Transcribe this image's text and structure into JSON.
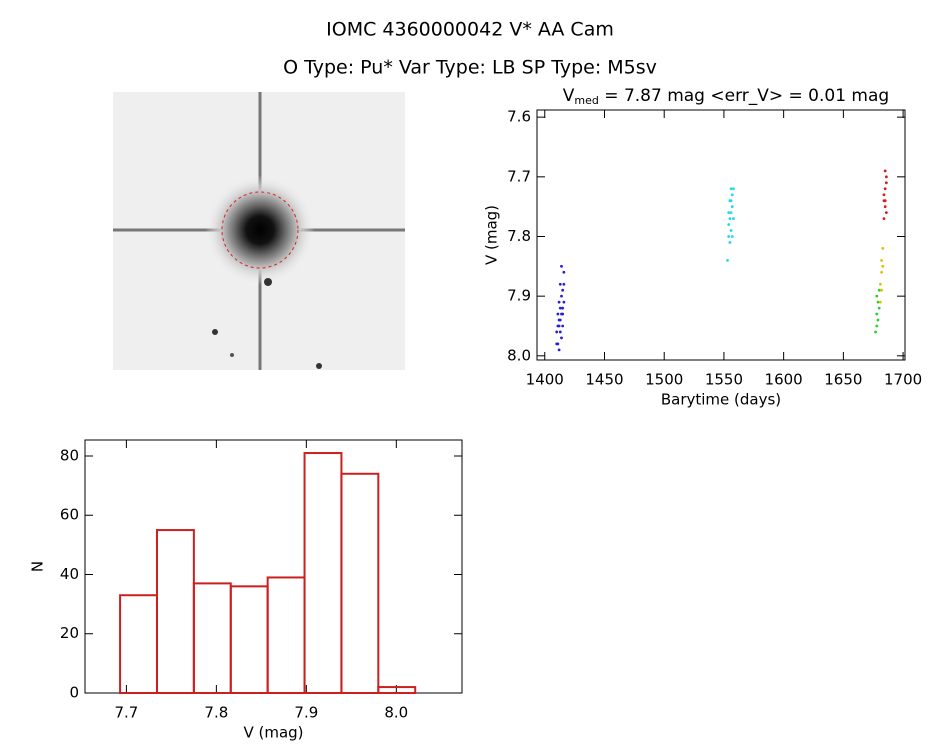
{
  "header": {
    "title": "IOMC 4360000042    V* AA Cam",
    "subtitle": "O Type: Pu*  Var Type: LB  SP Type: M5sv"
  },
  "chart_data": [
    {
      "type": "scatter",
      "title": [
        "V",
        "med",
        " = 7.87 mag <err_V> = 0.01 mag"
      ],
      "x_label": "Barytime (days)",
      "y_label": "V (mag)",
      "xlim": [
        1393.5,
        1701.6
      ],
      "ylim": [
        7.588,
        8.007
      ],
      "y_inverted": true,
      "xticks": [
        1400,
        1450,
        1500,
        1550,
        1600,
        1650,
        1700
      ],
      "yticks": [
        7.6,
        7.7,
        7.8,
        7.9,
        {
          "value": 8.0,
          "label": "8.0"
        }
      ],
      "series": [
        {
          "color": "#2a1fd6",
          "x": [
            1410,
            1411,
            1411,
            1412,
            1412,
            1412,
            1413,
            1413,
            1413,
            1414,
            1414,
            1414,
            1415,
            1415,
            1415,
            1416,
            1416,
            1411,
            1413,
            1414,
            1412,
            1415,
            1410,
            1416
          ],
          "values": [
            7.96,
            7.93,
            7.98,
            7.91,
            7.95,
            7.99,
            7.92,
            7.88,
            7.94,
            7.9,
            7.93,
            7.97,
            7.89,
            7.92,
            7.95,
            7.86,
            7.91,
            7.95,
            7.96,
            7.85,
            7.94,
            7.93,
            7.98,
            7.88
          ]
        },
        {
          "color": "#1fd8f0",
          "x": [
            1553,
            1554,
            1554,
            1555,
            1555,
            1556,
            1556,
            1556,
            1557,
            1557,
            1558,
            1558,
            1555,
            1557,
            1554,
            1556
          ],
          "values": [
            7.84,
            7.78,
            7.8,
            7.74,
            7.77,
            7.72,
            7.76,
            7.79,
            7.73,
            7.75,
            7.72,
            7.77,
            7.81,
            7.8,
            7.76,
            7.74
          ]
        },
        {
          "color": "#2cd12c",
          "x": [
            1677,
            1678,
            1678,
            1679,
            1679,
            1680,
            1680,
            1678
          ],
          "values": [
            7.96,
            7.93,
            7.95,
            7.91,
            7.94,
            7.89,
            7.92,
            7.9
          ]
        },
        {
          "color": "#e0c000",
          "x": [
            1681,
            1681,
            1682,
            1682,
            1682,
            1683,
            1683
          ],
          "values": [
            7.91,
            7.88,
            7.86,
            7.84,
            7.89,
            7.82,
            7.85
          ]
        },
        {
          "color": "#d41c1c",
          "x": [
            1684,
            1684,
            1685,
            1685,
            1685,
            1686,
            1686,
            1684,
            1686,
            1685
          ],
          "values": [
            7.77,
            7.74,
            7.72,
            7.75,
            7.69,
            7.71,
            7.76,
            7.73,
            7.7,
            7.74
          ]
        }
      ]
    },
    {
      "type": "histogram",
      "x_label": "V (mag)",
      "y_label": "N",
      "color": "#cc1f1f",
      "bins": [
        7.693,
        7.734,
        7.775,
        7.816,
        7.857,
        7.898,
        7.939,
        7.98,
        8.021
      ],
      "values": [
        33,
        55,
        37,
        36,
        39,
        81,
        74,
        2
      ],
      "xlim": [
        7.654,
        8.073
      ],
      "ylim": [
        0,
        85.4
      ],
      "xticks": [
        7.7,
        7.8,
        7.9,
        {
          "value": 8.0,
          "label": "8.0"
        }
      ],
      "yticks": [
        0,
        20,
        40,
        60,
        80
      ]
    }
  ]
}
